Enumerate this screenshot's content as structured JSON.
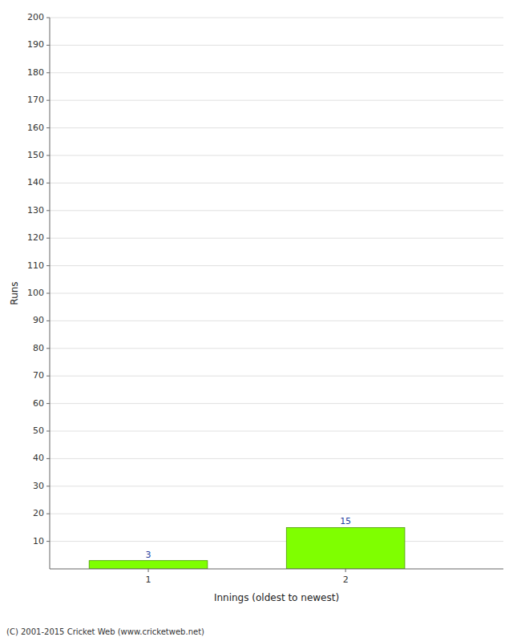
{
  "chart_data": {
    "type": "bar",
    "x": [
      1,
      2
    ],
    "values": [
      3,
      15
    ],
    "color": "#7FFF00",
    "xlim": [
      0.5,
      2.8
    ],
    "xticks": [
      1,
      2
    ],
    "ylim": [
      0,
      200
    ],
    "yticks": [
      10,
      20,
      30,
      40,
      50,
      60,
      70,
      80,
      90,
      100,
      110,
      120,
      130,
      140,
      150,
      160,
      170,
      180,
      190,
      200
    ],
    "xlabel": "Innings (oldest to newest)",
    "ylabel": "Runs",
    "annotations": [
      "(C) 2001-2015 Cricket Web (www.cricketweb.net)"
    ],
    "grid": true,
    "data_labels": true
  }
}
